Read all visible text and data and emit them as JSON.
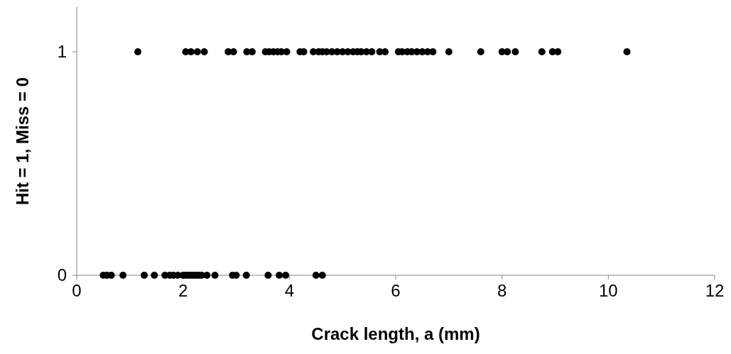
{
  "chart_data": {
    "type": "scatter",
    "xlabel": "Crack length, a (mm)",
    "ylabel": "Hit = 1, Miss = 0",
    "xlim": [
      0,
      12
    ],
    "xticks": [
      0,
      2,
      4,
      6,
      8,
      10,
      12
    ],
    "ylim": [
      0,
      1.2
    ],
    "yticks": [
      0,
      1
    ],
    "marker": "circle",
    "series": [
      {
        "color": "#000000",
        "x": [
          1.15,
          2.05,
          2.15,
          2.27,
          2.4,
          2.85,
          2.95,
          3.2,
          3.3,
          3.55,
          3.62,
          3.7,
          3.78,
          3.85,
          3.95,
          4.2,
          4.27,
          4.45,
          4.55,
          4.62,
          4.7,
          4.8,
          4.9,
          5.0,
          5.1,
          5.2,
          5.28,
          5.35,
          5.45,
          5.55,
          5.7,
          5.8,
          6.05,
          6.12,
          6.22,
          6.3,
          6.4,
          6.5,
          6.6,
          6.7,
          7.0,
          7.6,
          8.0,
          8.1,
          8.25,
          8.75,
          8.95,
          9.05,
          10.35
        ],
        "values": [
          1,
          1,
          1,
          1,
          1,
          1,
          1,
          1,
          1,
          1,
          1,
          1,
          1,
          1,
          1,
          1,
          1,
          1,
          1,
          1,
          1,
          1,
          1,
          1,
          1,
          1,
          1,
          1,
          1,
          1,
          1,
          1,
          1,
          1,
          1,
          1,
          1,
          1,
          1,
          1,
          1,
          1,
          1,
          1,
          1,
          1,
          1,
          1,
          1
        ]
      },
      {
        "color": "#000000",
        "x": [
          0.5,
          0.57,
          0.65,
          0.87,
          1.27,
          1.46,
          1.66,
          1.75,
          1.82,
          1.9,
          2.0,
          2.05,
          2.1,
          2.15,
          2.2,
          2.25,
          2.3,
          2.35,
          2.45,
          2.6,
          2.93,
          3.0,
          3.19,
          3.6,
          3.81,
          3.93,
          4.5,
          4.62
        ],
        "values": [
          0,
          0,
          0,
          0,
          0,
          0,
          0,
          0,
          0,
          0,
          0,
          0,
          0,
          0,
          0,
          0,
          0,
          0,
          0,
          0,
          0,
          0,
          0,
          0,
          0,
          0,
          0,
          0
        ]
      }
    ]
  }
}
